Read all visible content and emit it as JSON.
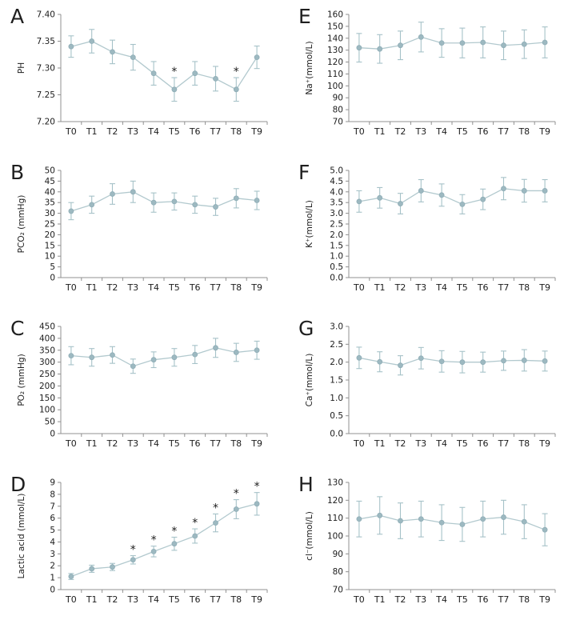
{
  "figure": {
    "background": "#ffffff",
    "line_color": "#b2c9ce",
    "marker_fill": "#9db9c1",
    "marker_stroke": "#8fadb6",
    "errorbar_color": "#a6c2c8",
    "axis_color": "#909090",
    "text_color": "#1c1c1c",
    "significance_marker": "*"
  },
  "chart_data": [
    {
      "type": "line",
      "panel_label": "A",
      "title": "",
      "xlabel": "",
      "ylabel": "PH",
      "categories": [
        "T0",
        "T1",
        "T2",
        "T3",
        "T4",
        "T5",
        "T6",
        "T7",
        "T8",
        "T9"
      ],
      "values": [
        7.34,
        7.35,
        7.33,
        7.32,
        7.29,
        7.26,
        7.29,
        7.28,
        7.26,
        7.32
      ],
      "errors": [
        0.02,
        0.022,
        0.022,
        0.024,
        0.022,
        0.022,
        0.022,
        0.023,
        0.022,
        0.021
      ],
      "significant_indices": [
        5,
        8
      ],
      "ylim": [
        7.2,
        7.4
      ],
      "ytick_step": 0.05,
      "ytick_decimals": 2,
      "grid": false,
      "legend": false
    },
    {
      "type": "line",
      "panel_label": "B",
      "title": "",
      "xlabel": "",
      "ylabel": "PCO₂ (mmHg)",
      "categories": [
        "T0",
        "T1",
        "T2",
        "T3",
        "T4",
        "T5",
        "T6",
        "T7",
        "T8",
        "T9"
      ],
      "values": [
        31,
        34,
        39,
        40,
        35,
        35.5,
        34,
        33,
        37,
        36
      ],
      "errors": [
        4,
        4,
        4.8,
        5,
        4.5,
        4,
        4,
        4,
        4.5,
        4.3
      ],
      "significant_indices": [],
      "ylim": [
        0,
        50
      ],
      "ytick_step": 5,
      "ytick_decimals": 0,
      "grid": false,
      "legend": false
    },
    {
      "type": "line",
      "panel_label": "C",
      "title": "",
      "xlabel": "",
      "ylabel": "PO₂ (mmHg)",
      "categories": [
        "T0",
        "T1",
        "T2",
        "T3",
        "T4",
        "T5",
        "T6",
        "T7",
        "T8",
        "T9"
      ],
      "values": [
        327,
        320,
        330,
        283,
        310,
        320,
        332,
        360,
        341,
        350
      ],
      "errors": [
        38,
        37,
        35,
        30,
        33,
        37,
        38,
        40,
        38,
        38
      ],
      "significant_indices": [],
      "ylim": [
        0,
        450
      ],
      "ytick_step": 50,
      "ytick_decimals": 0,
      "grid": false,
      "legend": false
    },
    {
      "type": "line",
      "panel_label": "D",
      "title": "",
      "xlabel": "",
      "ylabel": "Lactic acid (mmol/L)",
      "categories": [
        "T0",
        "T1",
        "T2",
        "T3",
        "T4",
        "T5",
        "T6",
        "T7",
        "T8",
        "T9"
      ],
      "values": [
        1.1,
        1.75,
        1.9,
        2.5,
        3.2,
        3.85,
        4.5,
        5.6,
        6.75,
        7.2
      ],
      "errors": [
        0.25,
        0.3,
        0.3,
        0.35,
        0.45,
        0.55,
        0.6,
        0.75,
        0.8,
        0.95
      ],
      "significant_indices": [
        3,
        4,
        5,
        6,
        7,
        8,
        9
      ],
      "ylim": [
        0,
        9
      ],
      "ytick_step": 1,
      "ytick_decimals": 0,
      "grid": false,
      "legend": false
    },
    {
      "type": "line",
      "panel_label": "E",
      "title": "",
      "xlabel": "",
      "ylabel": "Na⁺(mmol/L)",
      "categories": [
        "T0",
        "T1",
        "T2",
        "T3",
        "T4",
        "T5",
        "T6",
        "T7",
        "T8",
        "T9"
      ],
      "values": [
        132,
        131,
        134,
        141,
        136,
        136,
        136.5,
        134,
        135,
        136.5
      ],
      "errors": [
        12,
        12,
        12,
        12.5,
        12,
        12.5,
        13,
        12,
        12,
        13
      ],
      "significant_indices": [],
      "ylim": [
        70,
        160
      ],
      "ytick_step": 10,
      "ytick_decimals": 0,
      "grid": false,
      "legend": false
    },
    {
      "type": "line",
      "panel_label": "F",
      "title": "",
      "xlabel": "",
      "ylabel": "K⁺(mmol/L)",
      "categories": [
        "T0",
        "T1",
        "T2",
        "T3",
        "T4",
        "T5",
        "T6",
        "T7",
        "T8",
        "T9"
      ],
      "values": [
        3.55,
        3.72,
        3.45,
        4.05,
        3.85,
        3.42,
        3.65,
        4.15,
        4.05,
        4.05
      ],
      "errors": [
        0.5,
        0.48,
        0.48,
        0.52,
        0.52,
        0.45,
        0.48,
        0.52,
        0.53,
        0.52
      ],
      "significant_indices": [],
      "ylim": [
        0.0,
        5.0
      ],
      "ytick_step": 0.5,
      "ytick_decimals": 1,
      "grid": false,
      "legend": false
    },
    {
      "type": "line",
      "panel_label": "G",
      "title": "",
      "xlabel": "",
      "ylabel": "Ca⁺(mmol/L)",
      "categories": [
        "T0",
        "T1",
        "T2",
        "T3",
        "T4",
        "T5",
        "T6",
        "T7",
        "T8",
        "T9"
      ],
      "values": [
        2.12,
        2.01,
        1.91,
        2.11,
        2.02,
        2.0,
        2.0,
        2.04,
        2.05,
        2.03
      ],
      "errors": [
        0.3,
        0.28,
        0.27,
        0.3,
        0.3,
        0.3,
        0.28,
        0.27,
        0.3,
        0.28
      ],
      "significant_indices": [],
      "ylim": [
        0.0,
        3.0
      ],
      "ytick_step": 0.5,
      "ytick_decimals": 1,
      "grid": false,
      "legend": false
    },
    {
      "type": "line",
      "panel_label": "H",
      "title": "",
      "xlabel": "",
      "ylabel": "cl⁻(mmol/L)",
      "categories": [
        "T0",
        "T1",
        "T2",
        "T3",
        "T4",
        "T5",
        "T6",
        "T7",
        "T8",
        "T9"
      ],
      "values": [
        109.5,
        111.5,
        108.5,
        109.5,
        107.5,
        106.5,
        109.5,
        110.5,
        108,
        103.5
      ],
      "errors": [
        10,
        10.5,
        10,
        10,
        10,
        9.5,
        10,
        9.5,
        9.5,
        9
      ],
      "significant_indices": [],
      "ylim": [
        70,
        130
      ],
      "ytick_step": 10,
      "ytick_decimals": 0,
      "grid": false,
      "legend": false
    }
  ]
}
